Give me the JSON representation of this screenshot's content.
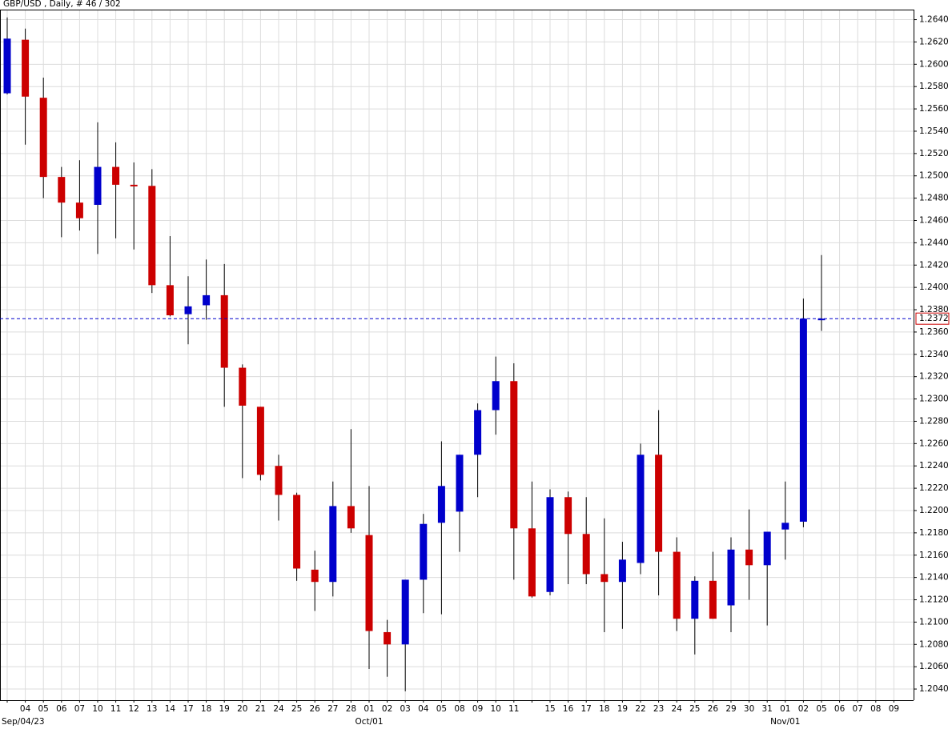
{
  "chart_data": {
    "type": "candlestick",
    "title": "GBP/USD , Daily, # 46 / 302",
    "categories": [
      null,
      "04",
      "05",
      "06",
      "07",
      "10",
      "11",
      "12",
      "13",
      "14",
      "17",
      "18",
      "19",
      "20",
      "21",
      "24",
      "25",
      "26",
      "27",
      "28",
      "01",
      "02",
      "03",
      "04",
      "05",
      "08",
      "09",
      "10",
      "11",
      null,
      "15",
      "16",
      "17",
      "18",
      "19",
      "22",
      "23",
      "24",
      "25",
      "26",
      "29",
      "30",
      "31",
      "01",
      "02",
      "05",
      "06",
      "07",
      "08",
      "09"
    ],
    "period_labels": [
      "Sep/04/23",
      null,
      null,
      null,
      null,
      null,
      null,
      null,
      null,
      null,
      null,
      null,
      null,
      null,
      null,
      null,
      null,
      null,
      null,
      null,
      "Oct/01",
      null,
      null,
      null,
      null,
      null,
      null,
      null,
      null,
      null,
      null,
      null,
      null,
      null,
      null,
      null,
      null,
      null,
      null,
      null,
      null,
      null,
      null,
      "Nov/01",
      null,
      null,
      null,
      null,
      null,
      null
    ],
    "open": [
      1.2574,
      1.2622,
      1.257,
      1.2499,
      1.2476,
      1.2474,
      1.2508,
      1.2492,
      1.2491,
      1.2402,
      1.2376,
      1.2384,
      1.2393,
      1.2328,
      1.2293,
      1.224,
      1.2214,
      1.2147,
      1.2136,
      1.2204,
      1.2178,
      1.2091,
      1.208,
      1.2138,
      1.2189,
      1.2199,
      1.225,
      1.229,
      1.2316,
      1.2184,
      1.2127,
      1.2212,
      1.2179,
      1.2143,
      1.2136,
      1.2153,
      1.225,
      1.2163,
      1.2103,
      1.2137,
      1.2115,
      1.2165,
      1.2151,
      1.2183,
      1.219,
      1.2371,
      null,
      null,
      null,
      null
    ],
    "high": [
      1.2642,
      1.2632,
      1.2588,
      1.2508,
      1.2514,
      1.2548,
      1.253,
      1.2512,
      1.2506,
      1.2446,
      1.241,
      1.2425,
      1.2421,
      1.2331,
      1.2293,
      1.225,
      1.2216,
      1.2164,
      1.2226,
      1.2273,
      1.2222,
      1.2102,
      1.2138,
      1.2197,
      1.2262,
      1.225,
      1.2296,
      1.2338,
      1.2332,
      1.2226,
      1.2219,
      1.2217,
      1.2212,
      1.2193,
      1.2172,
      1.226,
      1.229,
      1.2176,
      1.2141,
      1.2163,
      1.2176,
      1.2201,
      1.2181,
      1.2226,
      1.239,
      1.2429,
      null,
      null,
      null,
      null
    ],
    "low": [
      1.2573,
      1.2528,
      1.248,
      1.2445,
      1.2451,
      1.243,
      1.2444,
      1.2434,
      1.2395,
      1.2374,
      1.2349,
      1.2371,
      1.2293,
      1.2229,
      1.2227,
      1.2191,
      1.2137,
      1.211,
      1.2123,
      1.218,
      1.2058,
      1.2051,
      1.2038,
      1.2108,
      1.2107,
      1.2163,
      1.2212,
      1.2268,
      1.2138,
      1.2122,
      1.2124,
      1.2134,
      1.2134,
      1.2091,
      1.2094,
      1.2143,
      1.2124,
      1.2092,
      1.2071,
      1.2103,
      1.2091,
      1.212,
      1.2097,
      1.2156,
      1.2185,
      1.2361,
      null,
      null,
      null,
      null
    ],
    "close": [
      1.2623,
      1.2571,
      1.2499,
      1.2476,
      1.2462,
      1.2508,
      1.2492,
      1.2491,
      1.2402,
      1.2375,
      1.2383,
      1.2393,
      1.2328,
      1.2294,
      1.2232,
      1.2214,
      1.2148,
      1.2136,
      1.2204,
      1.2184,
      1.2092,
      1.208,
      1.2138,
      1.2188,
      1.2222,
      1.225,
      1.229,
      1.2316,
      1.2184,
      1.2123,
      1.2212,
      1.2179,
      1.2143,
      1.2136,
      1.2156,
      1.225,
      1.2163,
      1.2103,
      1.2137,
      1.2103,
      1.2165,
      1.2151,
      1.2181,
      1.2189,
      1.2372,
      1.2372,
      null,
      null,
      null,
      null
    ],
    "up_color": "#0000cc",
    "down_color": "#cc0000",
    "wick_color": "#000000",
    "current_price": 1.2372,
    "current_price_color": "#0000cc",
    "ylim": [
      1.203,
      1.2649
    ],
    "yticks": [
      {
        "value": 1.204,
        "label": "1.2040"
      },
      {
        "value": 1.206,
        "label": "1.2060"
      },
      {
        "value": 1.208,
        "label": "1.2080"
      },
      {
        "value": 1.21,
        "label": "1.2100"
      },
      {
        "value": 1.212,
        "label": "1.2120"
      },
      {
        "value": 1.214,
        "label": "1.2140"
      },
      {
        "value": 1.216,
        "label": "1.2160"
      },
      {
        "value": 1.218,
        "label": "1.2180"
      },
      {
        "value": 1.22,
        "label": "1.2200"
      },
      {
        "value": 1.222,
        "label": "1.2220"
      },
      {
        "value": 1.224,
        "label": "1.2240"
      },
      {
        "value": 1.226,
        "label": "1.2260"
      },
      {
        "value": 1.228,
        "label": "1.2280"
      },
      {
        "value": 1.23,
        "label": "1.2300"
      },
      {
        "value": 1.232,
        "label": "1.2320"
      },
      {
        "value": 1.234,
        "label": "1.2340"
      },
      {
        "value": 1.236,
        "label": "1.2360"
      },
      {
        "value": 1.238,
        "label": "1.2380"
      },
      {
        "value": 1.24,
        "label": "1.2400"
      },
      {
        "value": 1.242,
        "label": "1.2420"
      },
      {
        "value": 1.244,
        "label": "1.2440"
      },
      {
        "value": 1.246,
        "label": "1.2460"
      },
      {
        "value": 1.248,
        "label": "1.2480"
      },
      {
        "value": 1.25,
        "label": "1.2500"
      },
      {
        "value": 1.252,
        "label": "1.2520"
      },
      {
        "value": 1.254,
        "label": "1.2540"
      },
      {
        "value": 1.256,
        "label": "1.2560"
      },
      {
        "value": 1.258,
        "label": "1.2580"
      },
      {
        "value": 1.26,
        "label": "1.2600"
      },
      {
        "value": 1.262,
        "label": "1.2620"
      },
      {
        "value": 1.264,
        "label": "1.2640"
      }
    ],
    "grid": true
  }
}
